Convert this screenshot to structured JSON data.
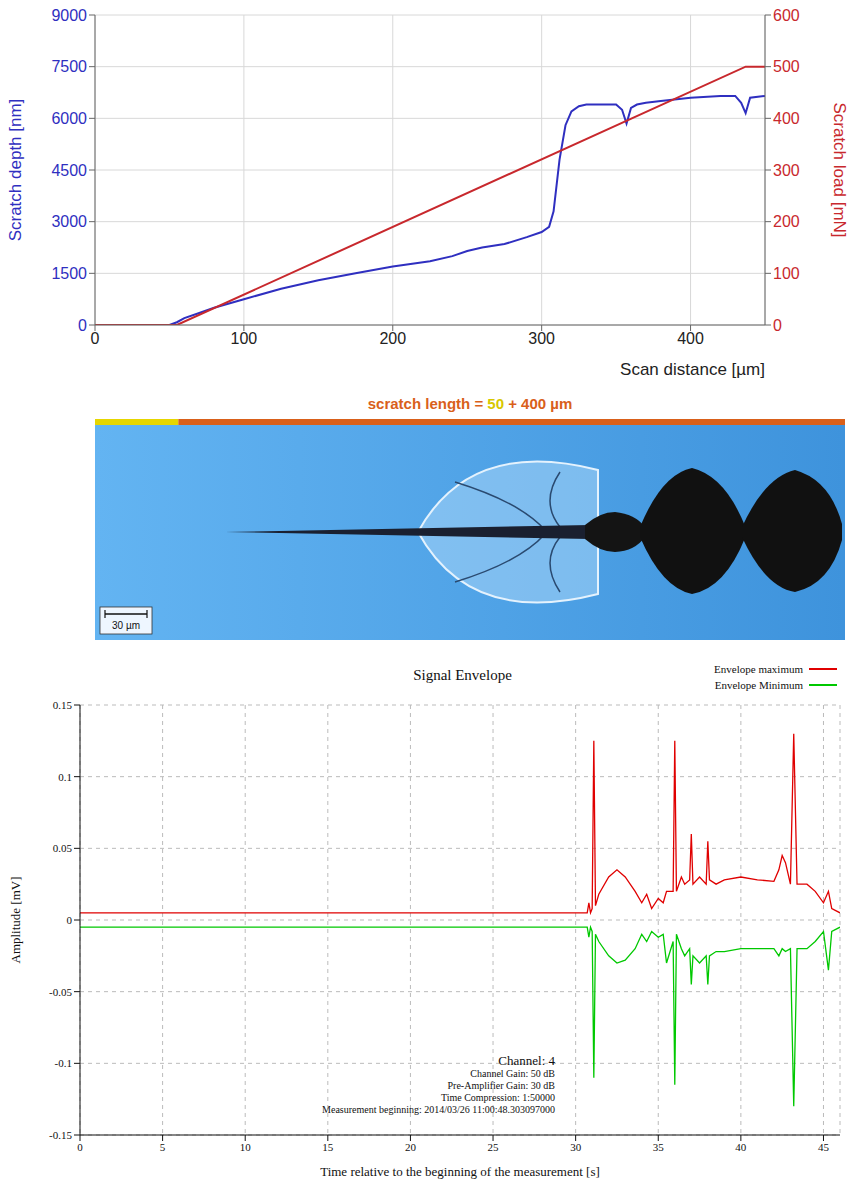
{
  "chart_data": [
    {
      "type": "line",
      "x_label": "Scan distance [µm]",
      "y_label": "Scratch depth [nm]",
      "y2_label": "Scratch load [mN]",
      "xlim": [
        0,
        450
      ],
      "xticks": [
        0,
        100,
        200,
        300,
        400
      ],
      "ylim": [
        0,
        9000
      ],
      "yticks": [
        0,
        1500,
        3000,
        4500,
        6000,
        7500,
        9000
      ],
      "y2lim": [
        0,
        600
      ],
      "y2ticks": [
        0,
        100,
        200,
        300,
        400,
        500,
        600
      ],
      "grid": true,
      "series": [
        {
          "color": "#2f2fc0",
          "x": [
            0,
            50,
            55,
            60,
            70,
            80,
            100,
            125,
            150,
            175,
            200,
            225,
            240,
            250,
            260,
            275,
            290,
            300,
            305,
            308,
            312,
            316,
            320,
            325,
            330,
            340,
            350,
            354,
            357,
            360,
            364,
            370,
            380,
            400,
            420,
            430,
            434,
            437,
            440,
            450
          ],
          "values": [
            0,
            0,
            80,
            200,
            350,
            500,
            750,
            1050,
            1300,
            1500,
            1700,
            1850,
            2000,
            2150,
            2250,
            2350,
            2550,
            2700,
            2850,
            3300,
            4800,
            5800,
            6200,
            6350,
            6400,
            6400,
            6400,
            6250,
            5850,
            6300,
            6400,
            6450,
            6500,
            6600,
            6650,
            6650,
            6450,
            6150,
            6600,
            6650
          ]
        },
        {
          "color": "#c8282d",
          "axis": "y2",
          "x": [
            0,
            55,
            437,
            450
          ],
          "values": [
            0,
            0,
            500,
            500
          ]
        }
      ]
    },
    {
      "type": "line",
      "title": "Signal Envelope",
      "x_label": "Time relative to the beginning of the measurement [s]",
      "y_label": "Amplitude [mV]",
      "xlim": [
        0,
        46
      ],
      "xticks": [
        0,
        5,
        10,
        15,
        20,
        25,
        30,
        35,
        40,
        45
      ],
      "ylim": [
        -0.15,
        0.15
      ],
      "yticks": [
        -0.15,
        -0.1,
        -0.05,
        0,
        0.05,
        0.1,
        0.15
      ],
      "grid": true,
      "legend": "top right",
      "x": [
        0,
        30.7,
        30.8,
        30.9,
        31.0,
        31.1,
        31.2,
        31.4,
        32,
        32.5,
        33,
        33.6,
        34,
        34.3,
        34.6,
        35,
        35.3,
        35.5,
        35.9,
        36.0,
        36.1,
        36.4,
        36.6,
        36.9,
        37.0,
        37.1,
        37.5,
        37.9,
        38.0,
        38.1,
        38.5,
        39,
        40,
        41,
        42,
        42.3,
        42.5,
        42.7,
        43.0,
        43.2,
        43.4,
        44,
        44.5,
        45,
        45.3,
        45.5,
        46
      ],
      "series": [
        {
          "name": "Envelope maximum",
          "color": "#e00000",
          "values": [
            0.005,
            0.005,
            0.012,
            0.005,
            0.008,
            0.125,
            0.01,
            0.018,
            0.03,
            0.035,
            0.03,
            0.02,
            0.012,
            0.018,
            0.008,
            0.015,
            0.012,
            0.02,
            0.02,
            0.125,
            0.02,
            0.03,
            0.025,
            0.028,
            0.06,
            0.025,
            0.03,
            0.025,
            0.055,
            0.028,
            0.025,
            0.028,
            0.03,
            0.028,
            0.027,
            0.035,
            0.045,
            0.04,
            0.025,
            0.13,
            0.025,
            0.025,
            0.02,
            0.012,
            0.02,
            0.008,
            0.005
          ]
        },
        {
          "name": "Envelope Minimum",
          "color": "#00c800",
          "values": [
            -0.005,
            -0.005,
            -0.012,
            -0.005,
            -0.008,
            -0.11,
            -0.01,
            -0.015,
            -0.025,
            -0.03,
            -0.028,
            -0.02,
            -0.01,
            -0.015,
            -0.008,
            -0.012,
            -0.01,
            -0.03,
            -0.015,
            -0.115,
            -0.01,
            -0.02,
            -0.025,
            -0.02,
            -0.045,
            -0.025,
            -0.03,
            -0.025,
            -0.045,
            -0.025,
            -0.022,
            -0.022,
            -0.02,
            -0.02,
            -0.02,
            -0.025,
            -0.02,
            -0.022,
            -0.02,
            -0.13,
            -0.02,
            -0.02,
            -0.015,
            -0.008,
            -0.035,
            -0.008,
            -0.005
          ]
        }
      ],
      "annotations": [
        "Channel: 4",
        "Channel Gain: 50 dB",
        "Pre-Amplifier Gain: 30 dB",
        "Time Compression: 1:50000",
        "Measurement beginning: 2014/03/26 11:00:48.303097000"
      ]
    }
  ],
  "micrograph": {
    "title_parts": [
      "scratch length = ",
      "50",
      " + 400 µm"
    ],
    "title_colors": [
      "#d9601a",
      "#d8c800",
      "#d9601a"
    ],
    "segments": [
      50,
      400
    ],
    "segment_colors": [
      "#e6d600",
      "#d9601a"
    ],
    "scale_bar": "30 µm"
  }
}
